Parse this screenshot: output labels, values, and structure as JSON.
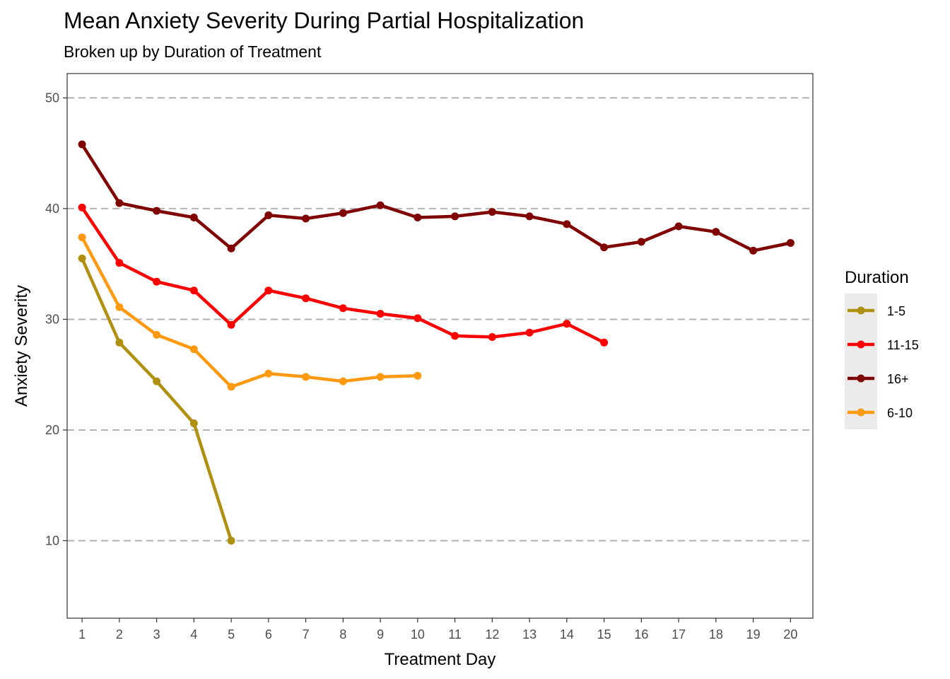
{
  "chart_data": {
    "type": "line",
    "title": "Mean Anxiety Severity During Partial Hospitalization",
    "subtitle": "Broken up by Duration of Treatment",
    "xlabel": "Treatment Day",
    "ylabel": "Anxiety Severity",
    "xlim": [
      0.6,
      20.6
    ],
    "ylim": [
      3,
      52.2
    ],
    "x_ticks": [
      1,
      2,
      3,
      4,
      5,
      6,
      7,
      8,
      9,
      10,
      11,
      12,
      13,
      14,
      15,
      16,
      17,
      18,
      19,
      20
    ],
    "y_ticks": [
      10,
      20,
      30,
      40,
      50
    ],
    "grid": "horizontal dashed",
    "legend": {
      "title": "Duration",
      "position": "right"
    },
    "series": [
      {
        "name": "1-5",
        "color": "#b09010",
        "x": [
          1,
          2,
          3,
          4,
          5
        ],
        "values": [
          35.5,
          27.9,
          24.4,
          20.6,
          10.0
        ]
      },
      {
        "name": "11-15",
        "color": "#ff0000",
        "x": [
          1,
          2,
          3,
          4,
          5,
          6,
          7,
          8,
          9,
          10,
          11,
          12,
          13,
          14,
          15
        ],
        "values": [
          40.1,
          35.1,
          33.4,
          32.6,
          29.5,
          32.6,
          31.9,
          31.0,
          30.5,
          30.1,
          28.5,
          28.4,
          28.8,
          29.6,
          27.9
        ]
      },
      {
        "name": "16+",
        "color": "#800000",
        "x": [
          1,
          2,
          3,
          4,
          5,
          6,
          7,
          8,
          9,
          10,
          11,
          12,
          13,
          14,
          15,
          16,
          17,
          18,
          19,
          20
        ],
        "values": [
          45.8,
          40.5,
          39.8,
          39.2,
          36.4,
          39.4,
          39.1,
          39.6,
          40.3,
          39.2,
          39.3,
          39.7,
          39.3,
          38.6,
          36.5,
          37.0,
          38.4,
          37.9,
          36.2,
          36.9
        ]
      },
      {
        "name": "6-10",
        "color": "#ff9a10",
        "x": [
          1,
          2,
          3,
          4,
          5,
          6,
          7,
          8,
          9,
          10
        ],
        "values": [
          37.4,
          31.1,
          28.6,
          27.3,
          23.9,
          25.1,
          24.8,
          24.4,
          24.8,
          24.9
        ]
      }
    ]
  }
}
